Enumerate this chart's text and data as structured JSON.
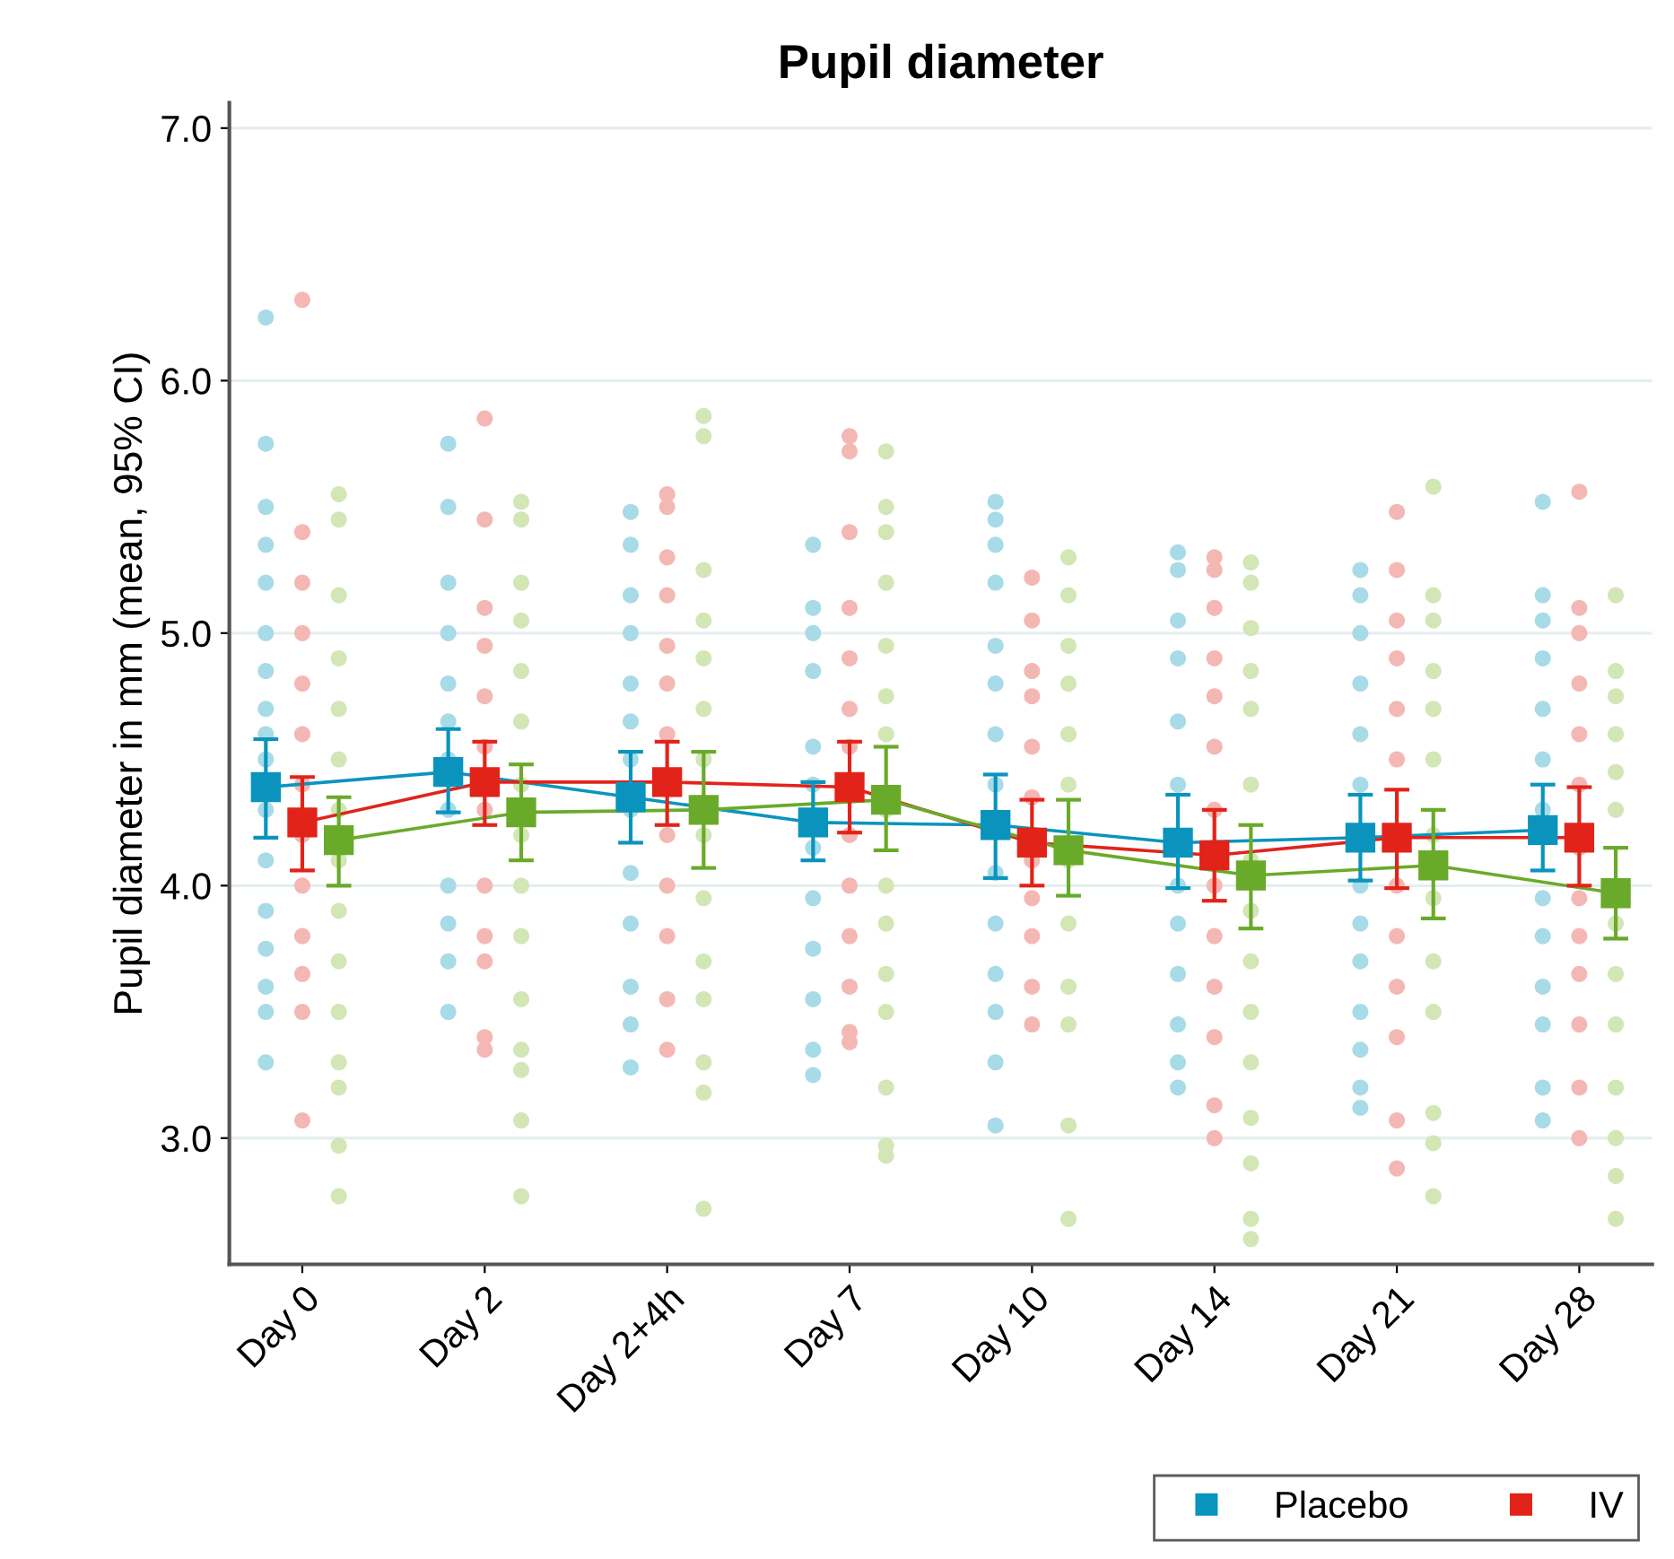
{
  "chart_data": {
    "type": "line",
    "title": "Pupil diameter",
    "ylabel": "Pupil diameter in mm (mean, 95% CI)",
    "categories": [
      "Day 0",
      "Day 2",
      "Day 2+4h",
      "Day 7",
      "Day 10",
      "Day 14",
      "Day 21",
      "Day 28"
    ],
    "ylim": [
      2.5,
      7.1
    ],
    "yticks": [
      {
        "value": 3,
        "label": "3.0"
      },
      {
        "value": 4,
        "label": "4.0"
      },
      {
        "value": 5,
        "label": "5.0"
      },
      {
        "value": 6,
        "label": "6.0"
      },
      {
        "value": 7,
        "label": "7.0"
      }
    ],
    "grid": "y",
    "legend": "bottom right",
    "marker": "square",
    "line_style": "solid",
    "series": [
      {
        "name": "Placebo",
        "color": "#0a94bd",
        "values": [
          4.39,
          4.45,
          4.35,
          4.25,
          4.24,
          4.17,
          4.19,
          4.22
        ],
        "errors": [
          [
            4.19,
            4.58
          ],
          [
            4.29,
            4.62
          ],
          [
            4.17,
            4.53
          ],
          [
            4.1,
            4.41
          ],
          [
            4.03,
            4.44
          ],
          [
            3.99,
            4.36
          ],
          [
            4.02,
            4.36
          ],
          [
            4.06,
            4.4
          ]
        ]
      },
      {
        "name": "IV",
        "color": "#e2231a",
        "values": [
          4.25,
          4.41,
          4.41,
          4.39,
          4.17,
          4.12,
          4.19,
          4.19
        ],
        "errors": [
          [
            4.06,
            4.43
          ],
          [
            4.24,
            4.57
          ],
          [
            4.24,
            4.57
          ],
          [
            4.21,
            4.57
          ],
          [
            4.0,
            4.34
          ],
          [
            3.94,
            4.3
          ],
          [
            3.99,
            4.38
          ],
          [
            4.0,
            4.39
          ]
        ]
      },
      {
        "color": "#6aaa2a",
        "values": [
          4.18,
          4.29,
          4.3,
          4.34,
          4.14,
          4.04,
          4.08,
          3.97
        ],
        "errors": [
          [
            4.0,
            4.35
          ],
          [
            4.1,
            4.48
          ],
          [
            4.07,
            4.53
          ],
          [
            4.14,
            4.55
          ],
          [
            3.96,
            4.34
          ],
          [
            3.83,
            4.24
          ],
          [
            3.87,
            4.3
          ],
          [
            3.79,
            4.15
          ]
        ]
      },
      {
        "type": "scatter",
        "marker": "circle",
        "color": "#a8dbe8",
        "x": [
          "Day 0",
          "Day 0",
          "Day 0",
          "Day 0",
          "Day 0",
          "Day 0",
          "Day 0",
          "Day 0",
          "Day 0",
          "Day 0",
          "Day 0",
          "Day 0",
          "Day 0",
          "Day 0",
          "Day 0",
          "Day 0",
          "Day 0",
          "Day 2",
          "Day 2",
          "Day 2",
          "Day 2",
          "Day 2",
          "Day 2",
          "Day 2",
          "Day 2",
          "Day 2",
          "Day 2",
          "Day 2",
          "Day 2",
          "Day 2+4h",
          "Day 2+4h",
          "Day 2+4h",
          "Day 2+4h",
          "Day 2+4h",
          "Day 2+4h",
          "Day 2+4h",
          "Day 2+4h",
          "Day 2+4h",
          "Day 2+4h",
          "Day 2+4h",
          "Day 2+4h",
          "Day 2+4h",
          "Day 7",
          "Day 7",
          "Day 7",
          "Day 7",
          "Day 7",
          "Day 7",
          "Day 7",
          "Day 7",
          "Day 7",
          "Day 7",
          "Day 7",
          "Day 7",
          "Day 10",
          "Day 10",
          "Day 10",
          "Day 10",
          "Day 10",
          "Day 10",
          "Day 10",
          "Day 10",
          "Day 10",
          "Day 10",
          "Day 10",
          "Day 10",
          "Day 10",
          "Day 10",
          "Day 14",
          "Day 14",
          "Day 14",
          "Day 14",
          "Day 14",
          "Day 14",
          "Day 14",
          "Day 14",
          "Day 14",
          "Day 14",
          "Day 14",
          "Day 14",
          "Day 21",
          "Day 21",
          "Day 21",
          "Day 21",
          "Day 21",
          "Day 21",
          "Day 21",
          "Day 21",
          "Day 21",
          "Day 21",
          "Day 21",
          "Day 21",
          "Day 21",
          "Day 28",
          "Day 28",
          "Day 28",
          "Day 28",
          "Day 28",
          "Day 28",
          "Day 28",
          "Day 28",
          "Day 28",
          "Day 28",
          "Day 28",
          "Day 28",
          "Day 28"
        ],
        "values": [
          6.25,
          5.75,
          5.5,
          5.35,
          5.2,
          5.0,
          4.85,
          4.7,
          4.6,
          4.5,
          4.3,
          4.1,
          3.9,
          3.75,
          3.6,
          3.5,
          3.3,
          5.75,
          5.5,
          5.2,
          5.0,
          4.8,
          4.65,
          4.5,
          4.3,
          4.0,
          3.85,
          3.7,
          3.5,
          5.48,
          5.35,
          5.15,
          5.0,
          4.8,
          4.65,
          4.5,
          4.3,
          4.05,
          3.85,
          3.6,
          3.45,
          3.28,
          5.35,
          5.1,
          5.0,
          4.85,
          4.55,
          4.4,
          4.15,
          3.95,
          3.75,
          3.55,
          3.35,
          3.25,
          5.52,
          5.45,
          5.35,
          5.2,
          4.95,
          4.8,
          4.6,
          4.4,
          4.05,
          3.85,
          3.65,
          3.5,
          3.3,
          3.05,
          5.32,
          5.25,
          5.05,
          4.9,
          4.65,
          4.4,
          4.0,
          3.85,
          3.65,
          3.45,
          3.3,
          3.2,
          5.25,
          5.15,
          5.0,
          4.8,
          4.6,
          4.4,
          4.0,
          3.85,
          3.7,
          3.5,
          3.35,
          3.2,
          3.12,
          5.52,
          5.15,
          5.05,
          4.9,
          4.7,
          4.5,
          4.3,
          3.95,
          3.8,
          3.6,
          3.45,
          3.2,
          3.07
        ]
      },
      {
        "type": "scatter",
        "marker": "circle",
        "color": "#f4b8b4",
        "x": [
          "Day 0",
          "Day 0",
          "Day 0",
          "Day 0",
          "Day 0",
          "Day 0",
          "Day 0",
          "Day 0",
          "Day 0",
          "Day 0",
          "Day 0",
          "Day 0",
          "Day 0",
          "Day 2",
          "Day 2",
          "Day 2",
          "Day 2",
          "Day 2",
          "Day 2",
          "Day 2",
          "Day 2",
          "Day 2",
          "Day 2",
          "Day 2",
          "Day 2",
          "Day 2+4h",
          "Day 2+4h",
          "Day 2+4h",
          "Day 2+4h",
          "Day 2+4h",
          "Day 2+4h",
          "Day 2+4h",
          "Day 2+4h",
          "Day 2+4h",
          "Day 2+4h",
          "Day 2+4h",
          "Day 2+4h",
          "Day 7",
          "Day 7",
          "Day 7",
          "Day 7",
          "Day 7",
          "Day 7",
          "Day 7",
          "Day 7",
          "Day 7",
          "Day 7",
          "Day 7",
          "Day 7",
          "Day 7",
          "Day 10",
          "Day 10",
          "Day 10",
          "Day 10",
          "Day 10",
          "Day 10",
          "Day 10",
          "Day 10",
          "Day 10",
          "Day 10",
          "Day 10",
          "Day 14",
          "Day 14",
          "Day 14",
          "Day 14",
          "Day 14",
          "Day 14",
          "Day 14",
          "Day 14",
          "Day 14",
          "Day 14",
          "Day 14",
          "Day 14",
          "Day 14",
          "Day 21",
          "Day 21",
          "Day 21",
          "Day 21",
          "Day 21",
          "Day 21",
          "Day 21",
          "Day 21",
          "Day 21",
          "Day 21",
          "Day 21",
          "Day 21",
          "Day 28",
          "Day 28",
          "Day 28",
          "Day 28",
          "Day 28",
          "Day 28",
          "Day 28",
          "Day 28",
          "Day 28",
          "Day 28",
          "Day 28",
          "Day 28",
          "Day 28"
        ],
        "values": [
          6.32,
          5.4,
          5.2,
          5.0,
          4.8,
          4.6,
          4.4,
          4.2,
          4.0,
          3.8,
          3.65,
          3.5,
          3.07,
          5.85,
          5.45,
          5.1,
          4.95,
          4.75,
          4.55,
          4.3,
          4.0,
          3.8,
          3.7,
          3.4,
          3.35,
          5.55,
          5.5,
          5.3,
          5.15,
          4.95,
          4.8,
          4.6,
          4.2,
          4.0,
          3.8,
          3.55,
          3.35,
          5.78,
          5.72,
          5.4,
          5.1,
          4.9,
          4.7,
          4.55,
          4.2,
          4.0,
          3.8,
          3.6,
          3.42,
          3.38,
          5.22,
          5.05,
          4.85,
          4.75,
          4.55,
          4.35,
          4.1,
          3.95,
          3.8,
          3.6,
          3.45,
          5.3,
          5.25,
          5.1,
          4.9,
          4.75,
          4.55,
          4.3,
          4.0,
          3.8,
          3.6,
          3.4,
          3.13,
          3.0,
          5.48,
          5.25,
          5.05,
          4.9,
          4.7,
          4.5,
          4.0,
          3.8,
          3.6,
          3.4,
          3.07,
          2.88,
          5.56,
          5.1,
          5.0,
          4.8,
          4.6,
          4.4,
          4.15,
          3.95,
          3.8,
          3.65,
          3.45,
          3.2,
          3.0
        ]
      },
      {
        "type": "scatter",
        "marker": "circle",
        "color": "#d3e6b5",
        "x": [
          "Day 0",
          "Day 0",
          "Day 0",
          "Day 0",
          "Day 0",
          "Day 0",
          "Day 0",
          "Day 0",
          "Day 0",
          "Day 0",
          "Day 0",
          "Day 0",
          "Day 0",
          "Day 0",
          "Day 0",
          "Day 2",
          "Day 2",
          "Day 2",
          "Day 2",
          "Day 2",
          "Day 2",
          "Day 2",
          "Day 2",
          "Day 2",
          "Day 2",
          "Day 2",
          "Day 2",
          "Day 2",
          "Day 2",
          "Day 2",
          "Day 2+4h",
          "Day 2+4h",
          "Day 2+4h",
          "Day 2+4h",
          "Day 2+4h",
          "Day 2+4h",
          "Day 2+4h",
          "Day 2+4h",
          "Day 2+4h",
          "Day 2+4h",
          "Day 2+4h",
          "Day 2+4h",
          "Day 2+4h",
          "Day 2+4h",
          "Day 7",
          "Day 7",
          "Day 7",
          "Day 7",
          "Day 7",
          "Day 7",
          "Day 7",
          "Day 7",
          "Day 7",
          "Day 7",
          "Day 7",
          "Day 7",
          "Day 7",
          "Day 7",
          "Day 7",
          "Day 10",
          "Day 10",
          "Day 10",
          "Day 10",
          "Day 10",
          "Day 10",
          "Day 10",
          "Day 10",
          "Day 10",
          "Day 10",
          "Day 10",
          "Day 10",
          "Day 14",
          "Day 14",
          "Day 14",
          "Day 14",
          "Day 14",
          "Day 14",
          "Day 14",
          "Day 14",
          "Day 14",
          "Day 14",
          "Day 14",
          "Day 14",
          "Day 14",
          "Day 14",
          "Day 14",
          "Day 21",
          "Day 21",
          "Day 21",
          "Day 21",
          "Day 21",
          "Day 21",
          "Day 21",
          "Day 21",
          "Day 21",
          "Day 21",
          "Day 21",
          "Day 21",
          "Day 21",
          "Day 28",
          "Day 28",
          "Day 28",
          "Day 28",
          "Day 28",
          "Day 28",
          "Day 28",
          "Day 28",
          "Day 28",
          "Day 28",
          "Day 28",
          "Day 28",
          "Day 28"
        ],
        "values": [
          5.55,
          5.45,
          5.15,
          4.9,
          4.7,
          4.5,
          4.3,
          4.1,
          3.9,
          3.7,
          3.5,
          3.3,
          3.2,
          2.97,
          2.77,
          5.52,
          5.45,
          5.2,
          5.05,
          4.85,
          4.65,
          4.4,
          4.2,
          4.0,
          3.8,
          3.55,
          3.35,
          3.27,
          3.07,
          2.77,
          5.86,
          5.78,
          5.25,
          5.05,
          4.9,
          4.7,
          4.5,
          4.2,
          3.95,
          3.7,
          3.55,
          3.3,
          3.18,
          2.72,
          5.72,
          5.5,
          5.4,
          5.2,
          4.95,
          4.75,
          4.6,
          4.3,
          4.0,
          3.85,
          3.65,
          3.5,
          3.2,
          2.97,
          2.93,
          5.3,
          5.15,
          4.95,
          4.8,
          4.6,
          4.4,
          4.1,
          3.85,
          3.6,
          3.45,
          3.05,
          2.68,
          5.28,
          5.2,
          5.02,
          4.85,
          4.7,
          4.4,
          4.1,
          3.9,
          3.7,
          3.5,
          3.3,
          3.08,
          2.9,
          2.68,
          2.6,
          5.58,
          5.15,
          5.05,
          4.85,
          4.7,
          4.5,
          4.2,
          3.95,
          3.7,
          3.5,
          3.1,
          2.98,
          2.77,
          5.15,
          4.85,
          4.75,
          4.6,
          4.45,
          4.3,
          3.85,
          3.65,
          3.45,
          3.2,
          3.0,
          2.85,
          2.68
        ]
      }
    ]
  }
}
